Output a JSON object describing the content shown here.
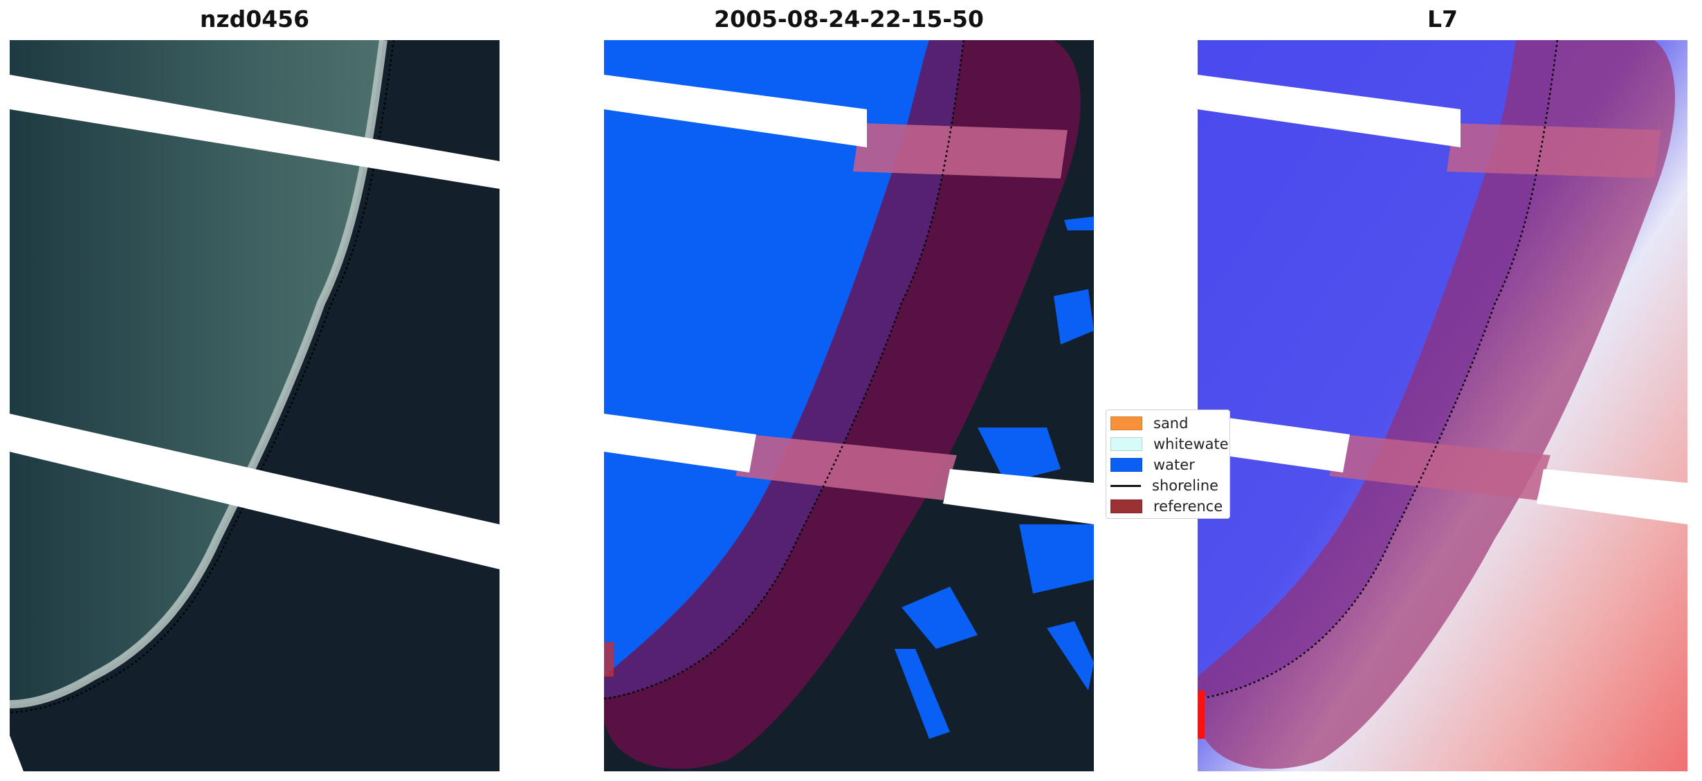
{
  "panels": [
    {
      "title": "nzd0456"
    },
    {
      "title": "2005-08-24-22-15-50"
    },
    {
      "title": "L7"
    }
  ],
  "legend": {
    "items": [
      {
        "label": "sand",
        "color": "#f7923a",
        "kind": "patch"
      },
      {
        "label": "whitewater",
        "color": "#d7fbf9",
        "kind": "patch"
      },
      {
        "label": "water",
        "color": "#0a5ff5",
        "kind": "patch"
      },
      {
        "label": "shoreline",
        "color": "#000000",
        "kind": "line"
      },
      {
        "label": "reference",
        "color": "#9b3133",
        "kind": "patch"
      }
    ]
  },
  "colors": {
    "land": "#131f2a",
    "shallow_water": "#3c5d5c",
    "deep_water": "#1d3840",
    "beach": "#b8c6c2",
    "water_class": "#0a5ff5",
    "buffer": "#7a1a58",
    "buffer_band": "#c0608c",
    "index_water": "#3a3af0",
    "index_land": "#f07070"
  }
}
